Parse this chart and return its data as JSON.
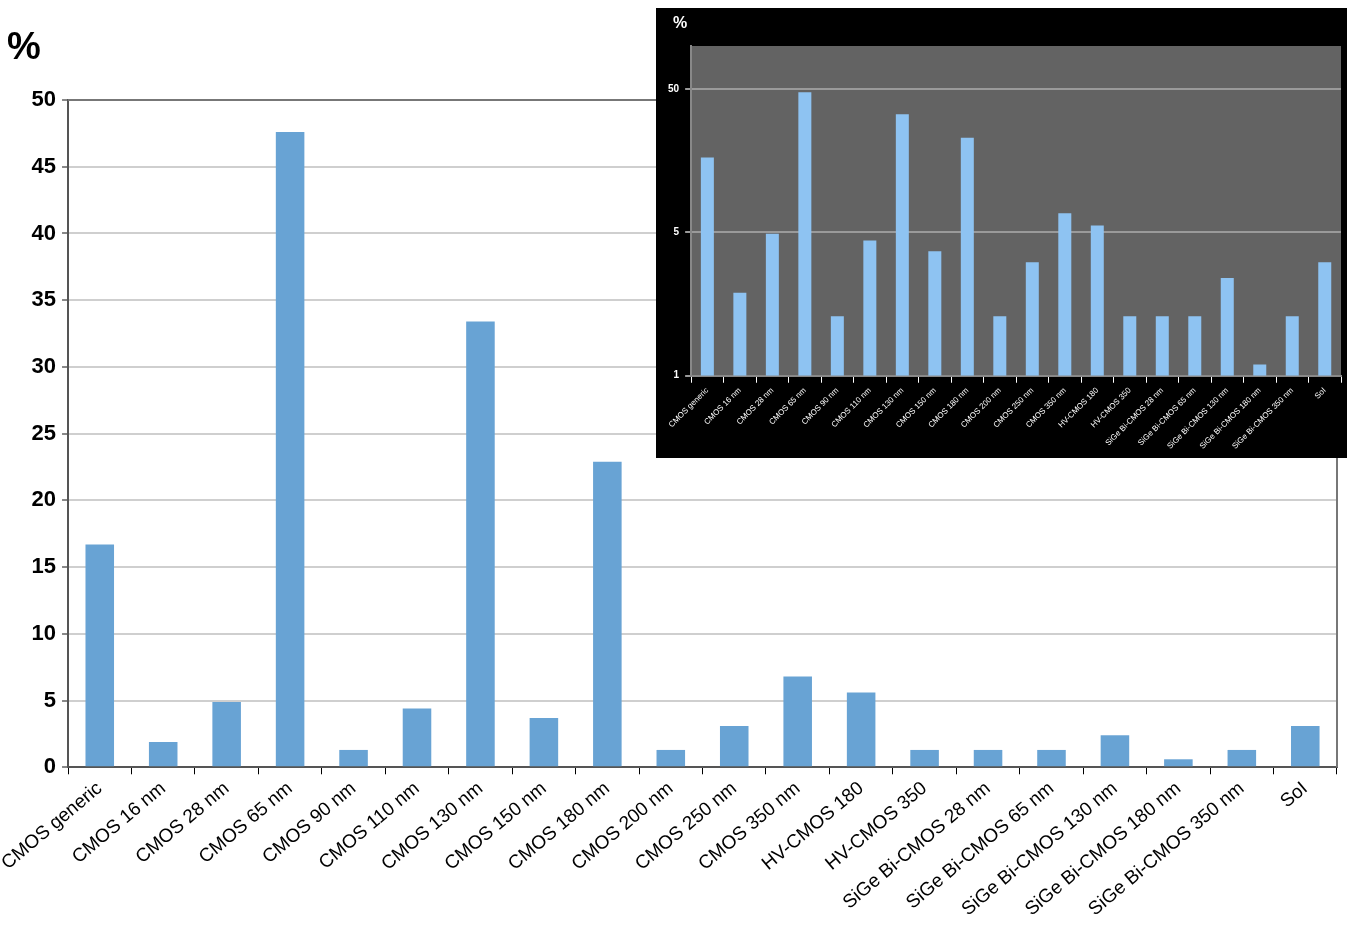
{
  "chart_data": [
    {
      "type": "bar",
      "ylabel": "%",
      "categories": [
        "CMOS generic",
        "CMOS 16 nm",
        "CMOS 28 nm",
        "CMOS 65 nm",
        "CMOS 90 nm",
        "CMOS 110 nm",
        "CMOS 130 nm",
        "CMOS 150 nm",
        "CMOS 180 nm",
        "CMOS 200 nm",
        "CMOS 250 nm",
        "CMOS 350 nm",
        "HV-CMOS 180",
        "HV-CMOS 350",
        "SiGe Bi-CMOS 28 nm",
        "SiGe Bi-CMOS 65 nm",
        "SiGe Bi-CMOS 130 nm",
        "SiGe Bi-CMOS 180 nm",
        "SiGe Bi-CMOS 350 nm",
        "SoI"
      ],
      "values": [
        16.7,
        1.9,
        4.9,
        47.6,
        1.3,
        4.4,
        33.4,
        3.7,
        22.9,
        1.3,
        3.1,
        6.8,
        5.6,
        1.3,
        1.3,
        1.3,
        2.4,
        0.6,
        1.3,
        3.1
      ],
      "color": "#68a3d4",
      "ylim": [
        0,
        50
      ],
      "yticks": [
        0,
        5,
        10,
        15,
        20,
        25,
        30,
        35,
        40,
        45,
        50
      ],
      "grid": "y"
    },
    {
      "type": "bar",
      "ylabel": "%",
      "log": "y",
      "categories": [
        "CMOS generic",
        "CMOS 16 nm",
        "CMOS 28 nm",
        "CMOS 65 nm",
        "CMOS 90 nm",
        "CMOS 110 nm",
        "CMOS 130 nm",
        "CMOS 150 nm",
        "CMOS 180 nm",
        "CMOS 200 nm",
        "CMOS 250 nm",
        "CMOS 350 nm",
        "HV-CMOS 180",
        "HV-CMOS 350",
        "SiGe Bi-CMOS 28 nm",
        "SiGe Bi-CMOS 65 nm",
        "SiGe Bi-CMOS 130 nm",
        "SiGe Bi-CMOS 180 nm",
        "SiGe Bi-CMOS 350 nm",
        "SoI"
      ],
      "values": [
        16.7,
        1.9,
        4.9,
        47.6,
        1.3,
        4.4,
        33.4,
        3.7,
        22.9,
        1.3,
        3.1,
        6.8,
        5.6,
        1.3,
        1.3,
        1.3,
        2.4,
        0.6,
        1.3,
        3.1
      ],
      "color": "#8ec3f2",
      "ylim": [
        0.5,
        100
      ],
      "yticks": [
        {
          "value": 0.5,
          "label": "1"
        },
        5,
        50
      ],
      "grid": "y"
    }
  ]
}
